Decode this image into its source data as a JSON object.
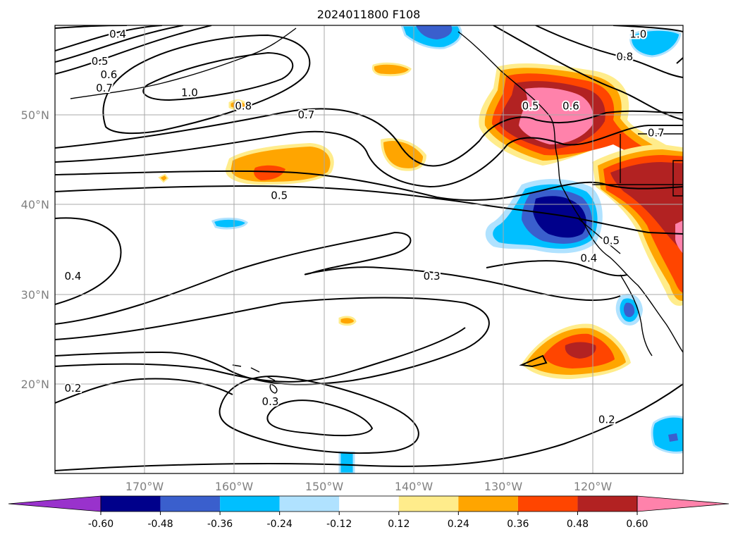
{
  "chart_data": {
    "type": "heatmap",
    "title": "2024011800 F108",
    "x_ticks": [
      "170°W",
      "160°W",
      "150°W",
      "140°W",
      "130°W",
      "120°W"
    ],
    "y_ticks": [
      "50°N",
      "40°N",
      "30°N",
      "20°N"
    ],
    "lon_range": [
      -180,
      -110
    ],
    "lat_range": [
      10,
      60
    ],
    "colorbar": {
      "levels": [
        "-0.60",
        "-0.48",
        "-0.36",
        "-0.24",
        "-0.12",
        "0.12",
        "0.24",
        "0.36",
        "0.48",
        "0.60"
      ],
      "colors": [
        "#9932cc",
        "#00008b",
        "#3a5fcd",
        "#00bfff",
        "#b0e2ff",
        "#ffffff",
        "#ffec8b",
        "#ffa500",
        "#ff4500",
        "#b22222",
        "#ff82ab"
      ],
      "extend": "both"
    },
    "contour_labels": [
      {
        "text": "0.4",
        "lon": -173,
        "lat": 59
      },
      {
        "text": "0.5",
        "lon": -175,
        "lat": 56
      },
      {
        "text": "0.6",
        "lon": -174,
        "lat": 54.5
      },
      {
        "text": "0.7",
        "lon": -174.5,
        "lat": 53
      },
      {
        "text": "1.0",
        "lon": -165,
        "lat": 52.5
      },
      {
        "text": "0.8",
        "lon": -159,
        "lat": 51
      },
      {
        "text": "0.7",
        "lon": -152,
        "lat": 50
      },
      {
        "text": "0.5",
        "lon": -127,
        "lat": 51
      },
      {
        "text": "0.6",
        "lon": -122.5,
        "lat": 51
      },
      {
        "text": "1.0",
        "lon": -115,
        "lat": 59
      },
      {
        "text": "0.8",
        "lon": -116.5,
        "lat": 56.5
      },
      {
        "text": "0.7",
        "lon": -113,
        "lat": 48
      },
      {
        "text": "0.5",
        "lon": -155,
        "lat": 41
      },
      {
        "text": "0.5",
        "lon": -118,
        "lat": 36
      },
      {
        "text": "0.4",
        "lon": -120.5,
        "lat": 34
      },
      {
        "text": "0.3",
        "lon": -138,
        "lat": 32
      },
      {
        "text": "0.4",
        "lon": -178,
        "lat": 32
      },
      {
        "text": "0.3",
        "lon": -156,
        "lat": 18
      },
      {
        "text": "0.2",
        "lon": -178,
        "lat": 19.5
      },
      {
        "text": "0.2",
        "lon": -118.5,
        "lat": 16
      }
    ],
    "shaded_regions": [
      {
        "name": "canada-positive",
        "level": 0.48,
        "lon_center": -124,
        "lat_center": 51
      },
      {
        "name": "west-us-positive",
        "level": 0.48,
        "lon_center": -115,
        "lat_center": 42
      },
      {
        "name": "california-negative",
        "level": -0.48,
        "lon_center": -125,
        "lat_center": 38
      },
      {
        "name": "mid-pacific-positive",
        "level": 0.36,
        "lon_center": -158,
        "lat_center": 43
      },
      {
        "name": "subtropical-positive",
        "level": 0.48,
        "lon_center": -123,
        "lat_center": 23
      }
    ]
  }
}
